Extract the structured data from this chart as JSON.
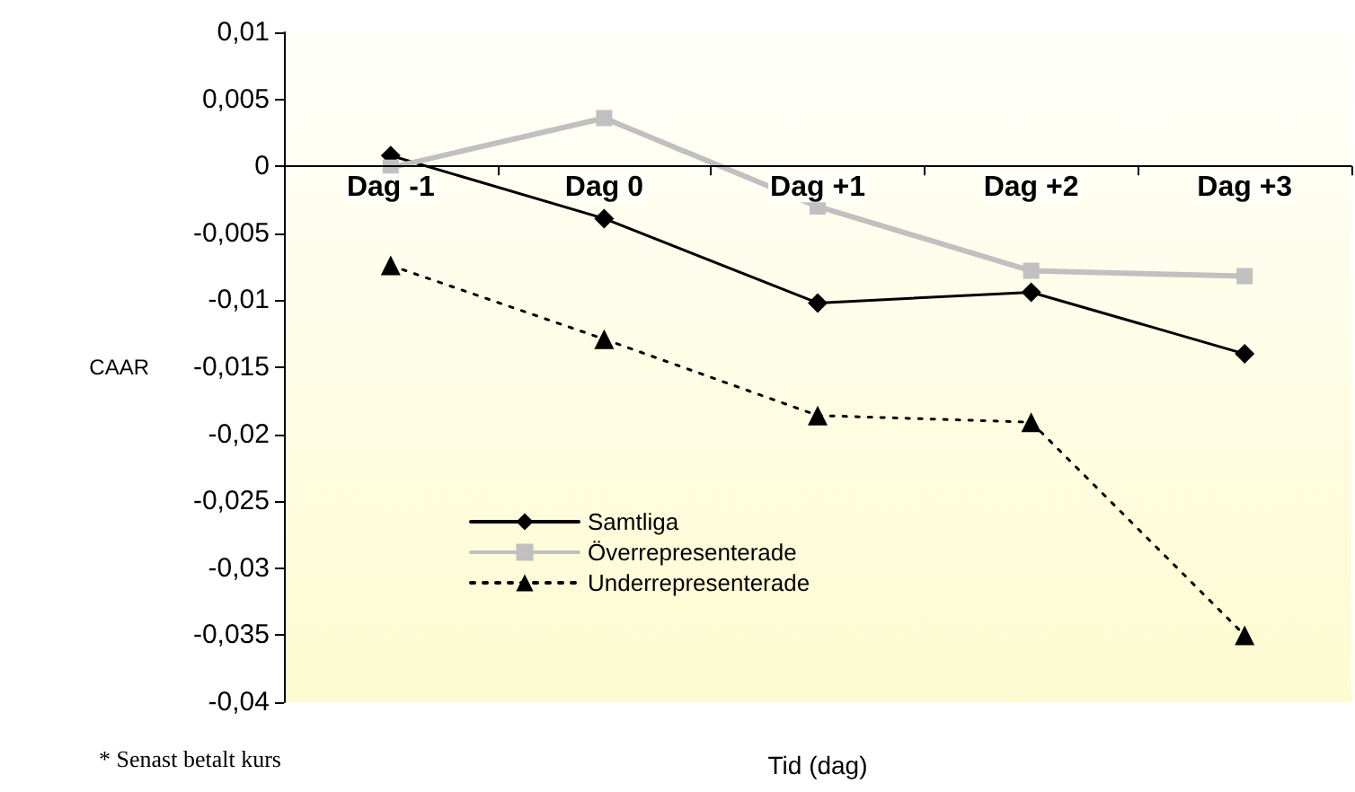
{
  "chart_data": {
    "type": "line",
    "xlabel": "Tid (dag)",
    "ylabel": "CAAR",
    "categories": [
      "Dag -1",
      "Dag 0",
      "Dag +1",
      "Dag +2",
      "Dag +3"
    ],
    "series": [
      {
        "name": "Samtliga",
        "color": "#000000",
        "marker": "diamond",
        "line_style": "solid",
        "values": [
          0.0008,
          -0.0039,
          -0.0102,
          -0.0094,
          -0.014
        ]
      },
      {
        "name": "Överrepresenterade",
        "color": "#c0c0c0",
        "marker": "square",
        "line_style": "solid",
        "values": [
          -0.0001,
          0.0036,
          -0.003,
          -0.0078,
          -0.0082
        ]
      },
      {
        "name": "Underrepresenterade",
        "color": "#000000",
        "marker": "triangle",
        "line_style": "dotted",
        "values": [
          -0.0074,
          -0.0129,
          -0.0186,
          -0.0191,
          -0.035
        ]
      }
    ],
    "ylim": [
      -0.04,
      0.01
    ],
    "yticks": [
      {
        "value": -0.04,
        "label": "-0,04"
      },
      {
        "value": -0.035,
        "label": "-0,035"
      },
      {
        "value": -0.03,
        "label": "-0,03"
      },
      {
        "value": -0.025,
        "label": "-0,025"
      },
      {
        "value": -0.02,
        "label": "-0,02"
      },
      {
        "value": -0.015,
        "label": "-0,015"
      },
      {
        "value": -0.01,
        "label": "-0,01"
      },
      {
        "value": -0.005,
        "label": "-0,005"
      },
      {
        "value": 0,
        "label": "0"
      },
      {
        "value": 0.005,
        "label": "0,005"
      },
      {
        "value": 0.01,
        "label": "0,01"
      }
    ],
    "grid": false,
    "legend": "bottom left",
    "annotations": [
      "* Senast betalt kurs"
    ]
  }
}
